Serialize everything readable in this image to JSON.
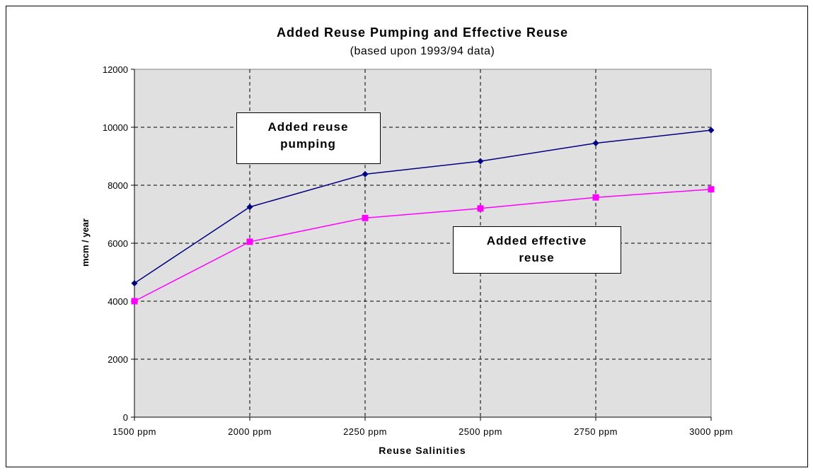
{
  "chart_data": {
    "type": "line",
    "title": "Added Reuse Pumping and Effective Reuse",
    "subtitle": "(based upon 1993/94 data)",
    "xlabel": "Reuse Salinities",
    "ylabel": "mcm / year",
    "categories": [
      "1500 ppm",
      "2000 ppm",
      "2250 ppm",
      "2500 ppm",
      "2750 ppm",
      "3000 ppm"
    ],
    "yticks": [
      0,
      2000,
      4000,
      6000,
      8000,
      10000,
      12000
    ],
    "ylim": [
      0,
      12000
    ],
    "grid": true,
    "plot_background": "#e0e0e0",
    "series": [
      {
        "values": [
          4620,
          7250,
          8380,
          8830,
          9450,
          9900
        ],
        "color": "#000080",
        "marker": "diamond"
      },
      {
        "values": [
          4000,
          6050,
          6870,
          7200,
          7580,
          7860
        ],
        "color": "#ff00ff",
        "marker": "square"
      }
    ],
    "annotations": [
      {
        "text": [
          "Added reuse",
          "pumping"
        ]
      },
      {
        "text": [
          "Added effective",
          "reuse"
        ]
      }
    ]
  }
}
